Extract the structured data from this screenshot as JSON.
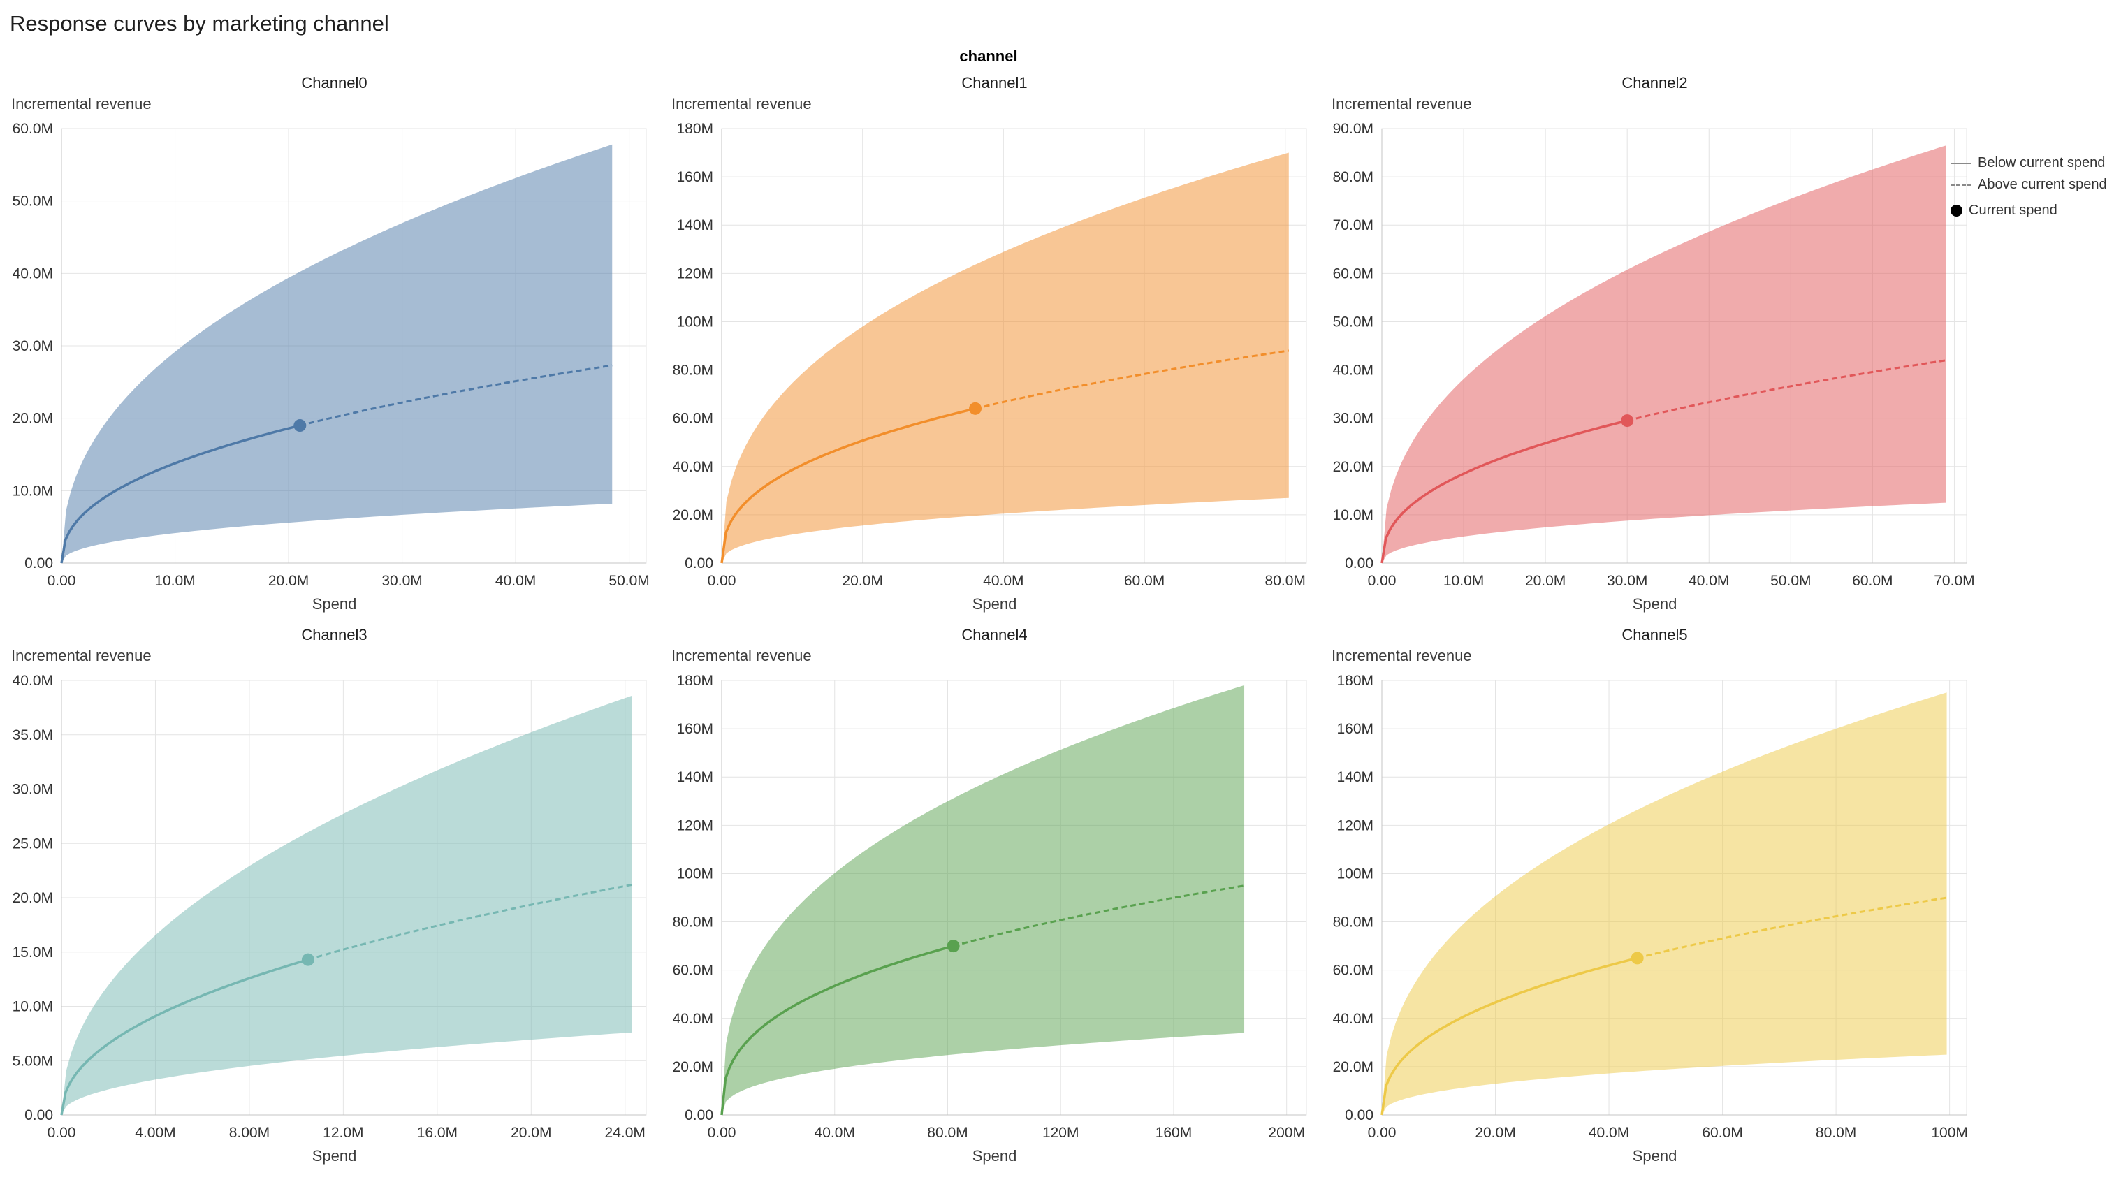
{
  "page": {
    "title": "Response curves by marketing channel",
    "facet_label": "channel"
  },
  "legend": {
    "below_label": "Below current spend",
    "above_label": "Above current spend",
    "current_label": "Current spend"
  },
  "chart_data": {
    "type": "line",
    "units": "millions",
    "x_axis_title": "Spend",
    "y_axis_title": "Incremental revenue",
    "description": "Small-multiple response curves per marketing channel; shaded credibility band, solid line below current spend, dashed line above, dot at current spend.",
    "charts": [
      {
        "title": "Channel0",
        "color": "#4e79a7",
        "x_domain_max": 51.5,
        "curve_end_x": 48.5,
        "current_spend": {
          "x": 21,
          "y": 19
        },
        "end": {
          "mean": 27.3,
          "upper": 57.8,
          "lower": 8.2
        },
        "x_ticks": {
          "values": [
            0,
            10,
            20,
            30,
            40,
            50
          ],
          "labels": [
            "0.00",
            "10.0M",
            "20.0M",
            "30.0M",
            "40.0M",
            "50.0M"
          ]
        },
        "y_ticks": {
          "values": [
            0,
            10,
            20,
            30,
            40,
            50,
            60
          ],
          "labels": [
            "0.00",
            "10.0M",
            "20.0M",
            "30.0M",
            "40.0M",
            "50.0M",
            "60.0M"
          ]
        }
      },
      {
        "title": "Channel1",
        "color": "#f28e2b",
        "x_domain_max": 83,
        "curve_end_x": 80.5,
        "current_spend": {
          "x": 36,
          "y": 64
        },
        "end": {
          "mean": 88,
          "upper": 170,
          "lower": 27
        },
        "x_ticks": {
          "values": [
            0,
            20,
            40,
            60,
            80
          ],
          "labels": [
            "0.00",
            "20.0M",
            "40.0M",
            "60.0M",
            "80.0M"
          ]
        },
        "y_ticks": {
          "values": [
            0,
            20,
            40,
            60,
            80,
            100,
            120,
            140,
            160,
            180
          ],
          "labels": [
            "0.00",
            "20.0M",
            "40.0M",
            "60.0M",
            "80.0M",
            "100M",
            "120M",
            "140M",
            "160M",
            "180M"
          ]
        }
      },
      {
        "title": "Channel2",
        "color": "#e15759",
        "x_domain_max": 71.5,
        "curve_end_x": 69,
        "current_spend": {
          "x": 30,
          "y": 29.5
        },
        "end": {
          "mean": 42,
          "upper": 86.5,
          "lower": 12.5
        },
        "x_ticks": {
          "values": [
            0,
            10,
            20,
            30,
            40,
            50,
            60,
            70
          ],
          "labels": [
            "0.00",
            "10.0M",
            "20.0M",
            "30.0M",
            "40.0M",
            "50.0M",
            "60.0M",
            "70.0M"
          ]
        },
        "y_ticks": {
          "values": [
            0,
            10,
            20,
            30,
            40,
            50,
            60,
            70,
            80,
            90
          ],
          "labels": [
            "0.00",
            "10.0M",
            "20.0M",
            "30.0M",
            "40.0M",
            "50.0M",
            "60.0M",
            "70.0M",
            "80.0M",
            "90.0M"
          ]
        }
      },
      {
        "title": "Channel3",
        "color": "#76b7b2",
        "x_domain_max": 24.9,
        "curve_end_x": 24.3,
        "current_spend": {
          "x": 10.5,
          "y": 14.3
        },
        "end": {
          "mean": 21.2,
          "upper": 38.6,
          "lower": 7.6
        },
        "x_ticks": {
          "values": [
            0,
            4,
            8,
            12,
            16,
            20,
            24
          ],
          "labels": [
            "0.00",
            "4.00M",
            "8.00M",
            "12.0M",
            "16.0M",
            "20.0M",
            "24.0M"
          ]
        },
        "y_ticks": {
          "values": [
            0,
            5,
            10,
            15,
            20,
            25,
            30,
            35,
            40
          ],
          "labels": [
            "0.00",
            "5.00M",
            "10.0M",
            "15.0M",
            "20.0M",
            "25.0M",
            "30.0M",
            "35.0M",
            "40.0M"
          ]
        }
      },
      {
        "title": "Channel4",
        "color": "#59a14f",
        "x_domain_max": 207,
        "curve_end_x": 185,
        "current_spend": {
          "x": 82,
          "y": 70
        },
        "end": {
          "mean": 95,
          "upper": 178,
          "lower": 34
        },
        "x_ticks": {
          "values": [
            0,
            40,
            80,
            120,
            160,
            200
          ],
          "labels": [
            "0.00",
            "40.0M",
            "80.0M",
            "120M",
            "160M",
            "200M"
          ]
        },
        "y_ticks": {
          "values": [
            0,
            20,
            40,
            60,
            80,
            100,
            120,
            140,
            160,
            180
          ],
          "labels": [
            "0.00",
            "20.0M",
            "40.0M",
            "60.0M",
            "80.0M",
            "100M",
            "120M",
            "140M",
            "160M",
            "180M"
          ]
        }
      },
      {
        "title": "Channel5",
        "color": "#edc948",
        "x_domain_max": 103,
        "curve_end_x": 99.5,
        "current_spend": {
          "x": 45,
          "y": 65
        },
        "end": {
          "mean": 90,
          "upper": 175,
          "lower": 25
        },
        "x_ticks": {
          "values": [
            0,
            20,
            40,
            60,
            80,
            100
          ],
          "labels": [
            "0.00",
            "20.0M",
            "40.0M",
            "60.0M",
            "80.0M",
            "100M"
          ]
        },
        "y_ticks": {
          "values": [
            0,
            20,
            40,
            60,
            80,
            100,
            120,
            140,
            160,
            180
          ],
          "labels": [
            "0.00",
            "20.0M",
            "40.0M",
            "60.0M",
            "80.0M",
            "100M",
            "120M",
            "140M",
            "160M",
            "180M"
          ]
        }
      }
    ]
  }
}
